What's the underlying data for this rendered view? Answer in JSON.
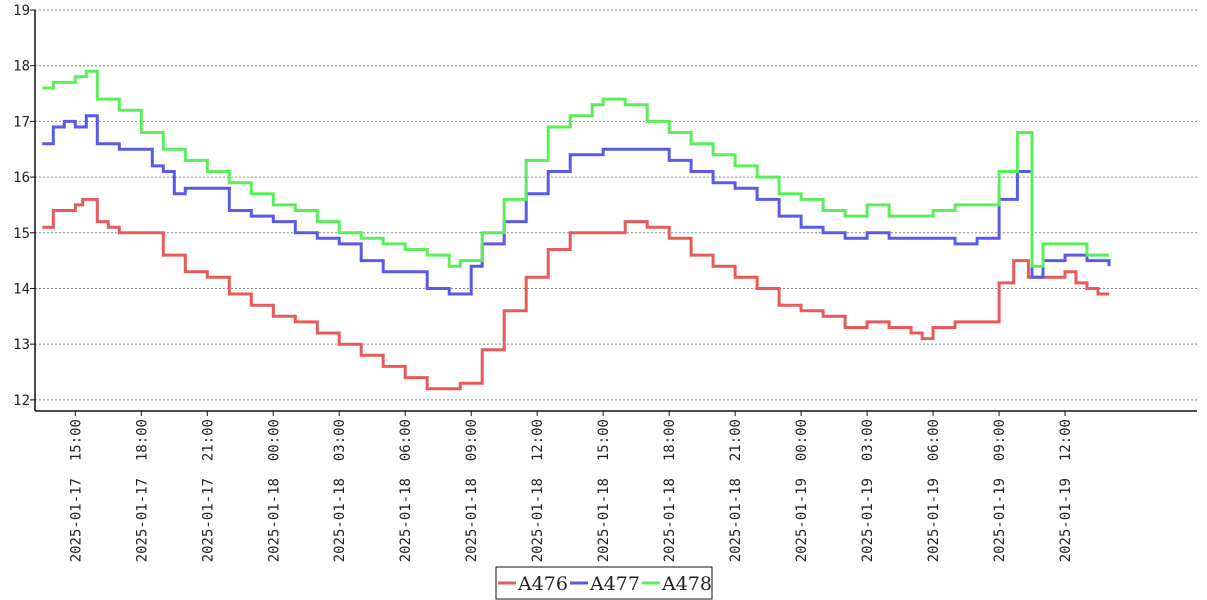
{
  "chart_data": {
    "type": "line",
    "title": "",
    "xlabel": "",
    "ylabel": "",
    "ylim": [
      11.8,
      19
    ],
    "yticks": [
      12,
      13,
      14,
      15,
      16,
      17,
      18,
      19
    ],
    "xlim": [
      "2025-01-17 13:10",
      "2025-01-19 18:00"
    ],
    "xticks": [
      "2025-01-17  15:00",
      "2025-01-17  18:00",
      "2025-01-17  21:00",
      "2025-01-18  00:00",
      "2025-01-18  03:00",
      "2025-01-18  06:00",
      "2025-01-18  09:00",
      "2025-01-18  12:00",
      "2025-01-18  15:00",
      "2025-01-18  18:00",
      "2025-01-18  21:00",
      "2025-01-19  00:00",
      "2025-01-19  03:00",
      "2025-01-19  06:00",
      "2025-01-19  09:00",
      "2025-01-19  12:00"
    ],
    "grid": "horizontal-dashed",
    "legend_position": "bottom-center",
    "series": [
      {
        "name": "A476",
        "color": "#e85a5a",
        "points": [
          [
            "2025-01-17 13:30",
            15.1
          ],
          [
            "2025-01-17 14:00",
            15.4
          ],
          [
            "2025-01-17 14:30",
            15.4
          ],
          [
            "2025-01-17 15:00",
            15.5
          ],
          [
            "2025-01-17 15:20",
            15.6
          ],
          [
            "2025-01-17 16:00",
            15.2
          ],
          [
            "2025-01-17 16:30",
            15.1
          ],
          [
            "2025-01-17 17:00",
            15.0
          ],
          [
            "2025-01-17 18:00",
            15.0
          ],
          [
            "2025-01-17 19:00",
            14.6
          ],
          [
            "2025-01-17 20:00",
            14.3
          ],
          [
            "2025-01-17 21:00",
            14.2
          ],
          [
            "2025-01-17 22:00",
            13.9
          ],
          [
            "2025-01-17 23:00",
            13.7
          ],
          [
            "2025-01-18 00:00",
            13.5
          ],
          [
            "2025-01-18 01:00",
            13.4
          ],
          [
            "2025-01-18 02:00",
            13.2
          ],
          [
            "2025-01-18 03:00",
            13.0
          ],
          [
            "2025-01-18 04:00",
            12.8
          ],
          [
            "2025-01-18 05:00",
            12.6
          ],
          [
            "2025-01-18 06:00",
            12.4
          ],
          [
            "2025-01-18 07:00",
            12.2
          ],
          [
            "2025-01-18 08:00",
            12.2
          ],
          [
            "2025-01-18 08:30",
            12.3
          ],
          [
            "2025-01-18 09:30",
            12.9
          ],
          [
            "2025-01-18 10:30",
            13.6
          ],
          [
            "2025-01-18 11:30",
            14.2
          ],
          [
            "2025-01-18 12:30",
            14.7
          ],
          [
            "2025-01-18 13:30",
            15.0
          ],
          [
            "2025-01-18 15:00",
            15.0
          ],
          [
            "2025-01-18 16:00",
            15.2
          ],
          [
            "2025-01-18 17:00",
            15.1
          ],
          [
            "2025-01-18 18:00",
            14.9
          ],
          [
            "2025-01-18 19:00",
            14.6
          ],
          [
            "2025-01-18 20:00",
            14.4
          ],
          [
            "2025-01-18 21:00",
            14.2
          ],
          [
            "2025-01-18 22:00",
            14.0
          ],
          [
            "2025-01-18 23:00",
            13.7
          ],
          [
            "2025-01-19 00:00",
            13.6
          ],
          [
            "2025-01-19 01:00",
            13.5
          ],
          [
            "2025-01-19 02:00",
            13.3
          ],
          [
            "2025-01-19 03:00",
            13.4
          ],
          [
            "2025-01-19 04:00",
            13.3
          ],
          [
            "2025-01-19 05:00",
            13.2
          ],
          [
            "2025-01-19 05:30",
            13.1
          ],
          [
            "2025-01-19 06:00",
            13.3
          ],
          [
            "2025-01-19 07:00",
            13.4
          ],
          [
            "2025-01-19 08:00",
            13.4
          ],
          [
            "2025-01-19 09:00",
            14.1
          ],
          [
            "2025-01-19 09:40",
            14.5
          ],
          [
            "2025-01-19 10:00",
            14.5
          ],
          [
            "2025-01-19 10:20",
            14.2
          ],
          [
            "2025-01-19 11:00",
            14.2
          ],
          [
            "2025-01-19 12:00",
            14.3
          ],
          [
            "2025-01-19 12:30",
            14.1
          ],
          [
            "2025-01-19 13:00",
            14.0
          ],
          [
            "2025-01-19 13:30",
            13.9
          ],
          [
            "2025-01-19 14:00",
            13.9
          ]
        ]
      },
      {
        "name": "A477",
        "color": "#5a5ae8",
        "points": [
          [
            "2025-01-17 13:30",
            16.6
          ],
          [
            "2025-01-17 14:00",
            16.9
          ],
          [
            "2025-01-17 14:30",
            17.0
          ],
          [
            "2025-01-17 15:00",
            16.9
          ],
          [
            "2025-01-17 15:30",
            17.1
          ],
          [
            "2025-01-17 16:00",
            16.6
          ],
          [
            "2025-01-17 17:00",
            16.5
          ],
          [
            "2025-01-17 18:00",
            16.5
          ],
          [
            "2025-01-17 18:30",
            16.2
          ],
          [
            "2025-01-17 19:00",
            16.1
          ],
          [
            "2025-01-17 19:30",
            15.7
          ],
          [
            "2025-01-17 20:00",
            15.8
          ],
          [
            "2025-01-17 21:00",
            15.8
          ],
          [
            "2025-01-17 22:00",
            15.4
          ],
          [
            "2025-01-17 23:00",
            15.3
          ],
          [
            "2025-01-18 00:00",
            15.2
          ],
          [
            "2025-01-18 01:00",
            15.0
          ],
          [
            "2025-01-18 02:00",
            14.9
          ],
          [
            "2025-01-18 03:00",
            14.8
          ],
          [
            "2025-01-18 04:00",
            14.5
          ],
          [
            "2025-01-18 05:00",
            14.3
          ],
          [
            "2025-01-18 06:00",
            14.3
          ],
          [
            "2025-01-18 07:00",
            14.0
          ],
          [
            "2025-01-18 08:00",
            13.9
          ],
          [
            "2025-01-18 09:00",
            14.4
          ],
          [
            "2025-01-18 09:30",
            14.8
          ],
          [
            "2025-01-18 10:30",
            15.2
          ],
          [
            "2025-01-18 11:30",
            15.7
          ],
          [
            "2025-01-18 12:30",
            16.1
          ],
          [
            "2025-01-18 13:30",
            16.4
          ],
          [
            "2025-01-18 15:00",
            16.5
          ],
          [
            "2025-01-18 16:00",
            16.5
          ],
          [
            "2025-01-18 17:00",
            16.5
          ],
          [
            "2025-01-18 18:00",
            16.3
          ],
          [
            "2025-01-18 19:00",
            16.1
          ],
          [
            "2025-01-18 20:00",
            15.9
          ],
          [
            "2025-01-18 21:00",
            15.8
          ],
          [
            "2025-01-18 22:00",
            15.6
          ],
          [
            "2025-01-18 23:00",
            15.3
          ],
          [
            "2025-01-19 00:00",
            15.1
          ],
          [
            "2025-01-19 01:00",
            15.0
          ],
          [
            "2025-01-19 02:00",
            14.9
          ],
          [
            "2025-01-19 03:00",
            15.0
          ],
          [
            "2025-01-19 04:00",
            14.9
          ],
          [
            "2025-01-19 05:00",
            14.9
          ],
          [
            "2025-01-19 06:00",
            14.9
          ],
          [
            "2025-01-19 07:00",
            14.8
          ],
          [
            "2025-01-19 08:00",
            14.9
          ],
          [
            "2025-01-19 09:00",
            15.6
          ],
          [
            "2025-01-19 09:50",
            16.1
          ],
          [
            "2025-01-19 10:30",
            14.2
          ],
          [
            "2025-01-19 11:00",
            14.5
          ],
          [
            "2025-01-19 12:00",
            14.6
          ],
          [
            "2025-01-19 13:00",
            14.5
          ],
          [
            "2025-01-19 14:00",
            14.4
          ]
        ]
      },
      {
        "name": "A478",
        "color": "#5aee5a",
        "points": [
          [
            "2025-01-17 13:30",
            17.6
          ],
          [
            "2025-01-17 14:00",
            17.7
          ],
          [
            "2025-01-17 14:30",
            17.7
          ],
          [
            "2025-01-17 15:00",
            17.8
          ],
          [
            "2025-01-17 15:30",
            17.9
          ],
          [
            "2025-01-17 16:00",
            17.4
          ],
          [
            "2025-01-17 17:00",
            17.2
          ],
          [
            "2025-01-17 18:00",
            16.8
          ],
          [
            "2025-01-17 19:00",
            16.5
          ],
          [
            "2025-01-17 20:00",
            16.3
          ],
          [
            "2025-01-17 21:00",
            16.1
          ],
          [
            "2025-01-17 22:00",
            15.9
          ],
          [
            "2025-01-17 23:00",
            15.7
          ],
          [
            "2025-01-18 00:00",
            15.5
          ],
          [
            "2025-01-18 01:00",
            15.4
          ],
          [
            "2025-01-18 02:00",
            15.2
          ],
          [
            "2025-01-18 03:00",
            15.0
          ],
          [
            "2025-01-18 04:00",
            14.9
          ],
          [
            "2025-01-18 05:00",
            14.8
          ],
          [
            "2025-01-18 06:00",
            14.7
          ],
          [
            "2025-01-18 07:00",
            14.6
          ],
          [
            "2025-01-18 08:00",
            14.4
          ],
          [
            "2025-01-18 08:30",
            14.5
          ],
          [
            "2025-01-18 09:30",
            15.0
          ],
          [
            "2025-01-18 10:30",
            15.6
          ],
          [
            "2025-01-18 11:30",
            16.3
          ],
          [
            "2025-01-18 12:30",
            16.9
          ],
          [
            "2025-01-18 13:30",
            17.1
          ],
          [
            "2025-01-18 14:30",
            17.3
          ],
          [
            "2025-01-18 15:00",
            17.4
          ],
          [
            "2025-01-18 16:00",
            17.3
          ],
          [
            "2025-01-18 17:00",
            17.0
          ],
          [
            "2025-01-18 18:00",
            16.8
          ],
          [
            "2025-01-18 19:00",
            16.6
          ],
          [
            "2025-01-18 20:00",
            16.4
          ],
          [
            "2025-01-18 21:00",
            16.2
          ],
          [
            "2025-01-18 22:00",
            16.0
          ],
          [
            "2025-01-18 23:00",
            15.7
          ],
          [
            "2025-01-19 00:00",
            15.6
          ],
          [
            "2025-01-19 01:00",
            15.4
          ],
          [
            "2025-01-19 02:00",
            15.3
          ],
          [
            "2025-01-19 03:00",
            15.5
          ],
          [
            "2025-01-19 04:00",
            15.3
          ],
          [
            "2025-01-19 05:00",
            15.3
          ],
          [
            "2025-01-19 06:00",
            15.4
          ],
          [
            "2025-01-19 07:00",
            15.5
          ],
          [
            "2025-01-19 08:00",
            15.5
          ],
          [
            "2025-01-19 09:00",
            16.1
          ],
          [
            "2025-01-19 09:50",
            16.8
          ],
          [
            "2025-01-19 10:30",
            14.4
          ],
          [
            "2025-01-19 11:00",
            14.8
          ],
          [
            "2025-01-19 12:00",
            14.8
          ],
          [
            "2025-01-19 13:00",
            14.6
          ],
          [
            "2025-01-19 14:00",
            14.6
          ]
        ]
      }
    ]
  }
}
